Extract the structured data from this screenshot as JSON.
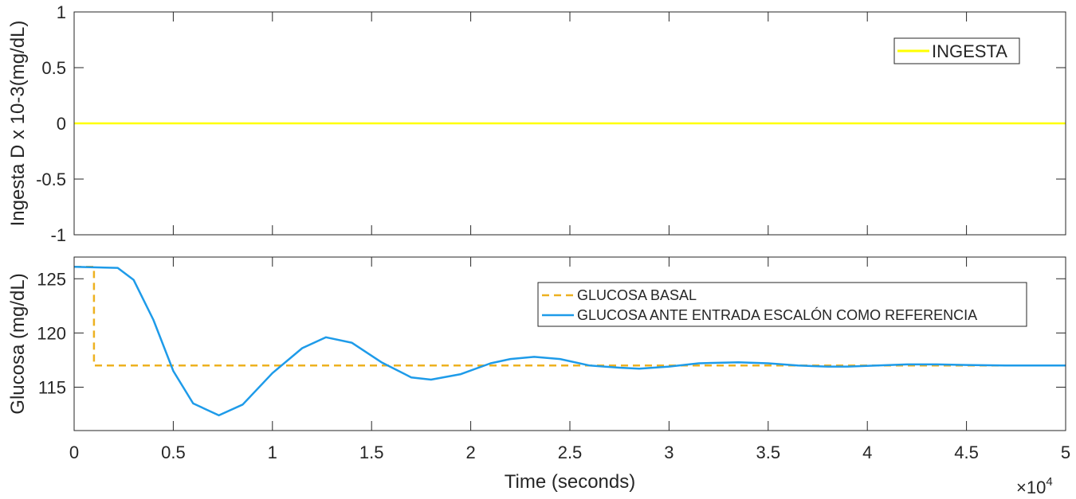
{
  "chart_data": [
    {
      "type": "line",
      "ylabel": "Ingesta D x 10-3(mg/dL)",
      "xlabel": "",
      "xlim": [
        0,
        50000
      ],
      "ylim": [
        -1,
        1
      ],
      "xticks": [
        0,
        5000,
        10000,
        15000,
        20000,
        25000,
        30000,
        35000,
        40000,
        45000,
        50000
      ],
      "yticks": [
        -1,
        -0.5,
        0,
        0.5,
        1
      ],
      "ytick_labels": [
        "-1",
        "-0.5",
        "0",
        "0.5",
        "1"
      ],
      "legend_position": "top-right",
      "series": [
        {
          "name": "INGESTA",
          "color": "#FFFF00",
          "style": "solid",
          "x": [
            0,
            50000
          ],
          "y": [
            0,
            0
          ]
        }
      ]
    },
    {
      "type": "line",
      "ylabel": "Glucosa (mg/dL)",
      "xlabel": "Time (seconds)",
      "xlim": [
        0,
        50000
      ],
      "ylim": [
        111,
        127
      ],
      "xticks": [
        0,
        5000,
        10000,
        15000,
        20000,
        25000,
        30000,
        35000,
        40000,
        45000,
        50000
      ],
      "xtick_labels": [
        "0",
        "0.5",
        "1",
        "1.5",
        "2",
        "2.5",
        "3",
        "3.5",
        "4",
        "4.5",
        "5"
      ],
      "x_exponent_label": "×10",
      "x_exponent_power": "4",
      "yticks": [
        115,
        120,
        125
      ],
      "ytick_labels": [
        "115",
        "120",
        "125"
      ],
      "legend_position": "top-right",
      "series": [
        {
          "name": "GLUCOSA BASAL",
          "color": "#EDB120",
          "style": "dashed",
          "x": [
            0,
            1000,
            1000,
            50000
          ],
          "y": [
            126.1,
            126.1,
            117,
            117
          ]
        },
        {
          "name": "GLUCOSA ANTE ENTRADA ESCALÓN COMO REFERENCIA",
          "color": "#1E9BE9",
          "style": "solid",
          "x": [
            0,
            2200,
            3000,
            4000,
            5000,
            6000,
            7300,
            8500,
            10000,
            11500,
            12700,
            14000,
            15500,
            17000,
            18000,
            19500,
            21000,
            22000,
            23200,
            24500,
            26000,
            27500,
            28500,
            30000,
            31500,
            33500,
            35000,
            36500,
            38000,
            39000,
            40500,
            42000,
            43500,
            45000,
            47000,
            50000
          ],
          "y": [
            126.1,
            126.0,
            124.9,
            121.2,
            116.5,
            113.5,
            112.4,
            113.4,
            116.3,
            118.6,
            119.6,
            119.1,
            117.3,
            115.9,
            115.7,
            116.2,
            117.2,
            117.6,
            117.8,
            117.6,
            117.0,
            116.8,
            116.7,
            116.9,
            117.2,
            117.3,
            117.2,
            117.0,
            116.9,
            116.9,
            117.0,
            117.1,
            117.1,
            117.05,
            117.0,
            117.0
          ]
        }
      ]
    }
  ]
}
